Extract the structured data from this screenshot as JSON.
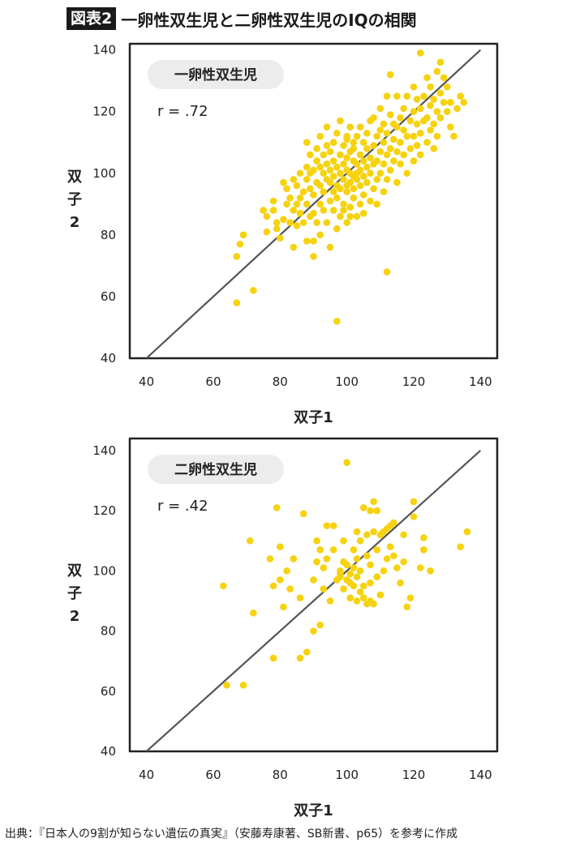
{
  "figure": {
    "tag": "図表2",
    "title": "一卵性双生児と二卵性双生児のIQの相関"
  },
  "source": "出典：『日本人の9割が知らない遺伝の真実』（安藤寿康著、SB新書、p65）を参考に作成",
  "colors": {
    "dot": "#f6d20f",
    "line": "#555555",
    "frame": "#222222",
    "badge": "#ececec"
  },
  "chart_data": [
    {
      "type": "scatter",
      "badge": "一卵性双生児",
      "annotation": "r = .72",
      "xlabel": "双子1",
      "ylabel": [
        "双",
        "子",
        "2"
      ],
      "xlim": [
        35,
        145
      ],
      "ylim": [
        40,
        142
      ],
      "xticks": [
        40,
        60,
        80,
        100,
        120,
        140
      ],
      "yticks": [
        40,
        60,
        80,
        100,
        120,
        140
      ],
      "trend_line": [
        [
          40,
          40
        ],
        [
          140,
          140
        ]
      ],
      "points": [
        [
          67,
          73
        ],
        [
          67,
          58
        ],
        [
          68,
          77
        ],
        [
          69,
          80
        ],
        [
          72,
          62
        ],
        [
          75,
          88
        ],
        [
          76,
          86
        ],
        [
          76,
          81
        ],
        [
          78,
          91
        ],
        [
          78,
          88
        ],
        [
          79,
          84
        ],
        [
          79,
          82
        ],
        [
          80,
          79
        ],
        [
          81,
          85
        ],
        [
          81,
          97
        ],
        [
          82,
          90
        ],
        [
          82,
          95
        ],
        [
          83,
          92
        ],
        [
          83,
          84
        ],
        [
          84,
          76
        ],
        [
          84,
          88
        ],
        [
          84,
          98
        ],
        [
          85,
          96
        ],
        [
          85,
          90
        ],
        [
          85,
          83
        ],
        [
          86,
          92
        ],
        [
          86,
          100
        ],
        [
          86,
          87
        ],
        [
          87,
          84
        ],
        [
          87,
          94
        ],
        [
          88,
          90
        ],
        [
          88,
          98
        ],
        [
          88,
          102
        ],
        [
          88,
          110
        ],
        [
          88,
          78
        ],
        [
          89,
          86
        ],
        [
          89,
          95
        ],
        [
          89,
          100
        ],
        [
          89,
          106
        ],
        [
          90,
          87
        ],
        [
          90,
          93
        ],
        [
          90,
          101
        ],
        [
          90,
          78
        ],
        [
          90,
          73
        ],
        [
          91,
          84
        ],
        [
          91,
          97
        ],
        [
          91,
          104
        ],
        [
          91,
          108
        ],
        [
          92,
          90
        ],
        [
          92,
          96
        ],
        [
          92,
          102
        ],
        [
          92,
          112
        ],
        [
          92,
          80
        ],
        [
          93,
          88
        ],
        [
          93,
          100
        ],
        [
          93,
          106
        ],
        [
          93,
          94
        ],
        [
          94,
          84
        ],
        [
          94,
          98
        ],
        [
          94,
          103
        ],
        [
          94,
          109
        ],
        [
          94,
          115
        ],
        [
          95,
          76
        ],
        [
          95,
          91
        ],
        [
          95,
          97
        ],
        [
          95,
          101
        ],
        [
          95,
          107
        ],
        [
          96,
          88
        ],
        [
          96,
          94
        ],
        [
          96,
          99
        ],
        [
          96,
          104
        ],
        [
          96,
          110
        ],
        [
          97,
          82
        ],
        [
          97,
          92
        ],
        [
          97,
          96
        ],
        [
          97,
          102
        ],
        [
          97,
          113
        ],
        [
          97,
          52
        ],
        [
          98,
          86
        ],
        [
          98,
          95
        ],
        [
          98,
          100
        ],
        [
          98,
          106
        ],
        [
          98,
          117
        ],
        [
          99,
          90
        ],
        [
          99,
          98
        ],
        [
          99,
          103
        ],
        [
          99,
          109
        ],
        [
          99,
          88
        ],
        [
          100,
          84
        ],
        [
          100,
          94
        ],
        [
          100,
          96
        ],
        [
          100,
          101
        ],
        [
          100,
          105
        ],
        [
          100,
          111
        ],
        [
          100,
          112
        ],
        [
          101,
          89
        ],
        [
          101,
          97
        ],
        [
          101,
          100
        ],
        [
          101,
          107
        ],
        [
          101,
          115
        ],
        [
          101,
          86
        ],
        [
          102,
          92
        ],
        [
          102,
          95
        ],
        [
          102,
          99
        ],
        [
          102,
          104
        ],
        [
          102,
          110
        ],
        [
          102,
          108
        ],
        [
          103,
          86
        ],
        [
          103,
          98
        ],
        [
          103,
          103
        ],
        [
          103,
          112
        ],
        [
          103,
          100
        ],
        [
          104,
          90
        ],
        [
          104,
          96
        ],
        [
          104,
          101
        ],
        [
          104,
          106
        ],
        [
          104,
          115
        ],
        [
          105,
          93
        ],
        [
          105,
          99
        ],
        [
          105,
          104
        ],
        [
          105,
          110
        ],
        [
          105,
          87
        ],
        [
          106,
          97
        ],
        [
          106,
          102
        ],
        [
          106,
          108
        ],
        [
          106,
          113
        ],
        [
          107,
          91
        ],
        [
          107,
          100
        ],
        [
          107,
          105
        ],
        [
          107,
          117
        ],
        [
          108,
          95
        ],
        [
          108,
          103
        ],
        [
          108,
          109
        ],
        [
          108,
          118
        ],
        [
          109,
          98
        ],
        [
          109,
          104
        ],
        [
          109,
          112
        ],
        [
          109,
          90
        ],
        [
          110,
          100
        ],
        [
          110,
          107
        ],
        [
          110,
          114
        ],
        [
          110,
          121
        ],
        [
          111,
          94
        ],
        [
          111,
          103
        ],
        [
          111,
          110
        ],
        [
          111,
          116
        ],
        [
          112,
          98
        ],
        [
          112,
          106
        ],
        [
          112,
          113
        ],
        [
          112,
          125
        ],
        [
          112,
          68
        ],
        [
          113,
          101
        ],
        [
          113,
          108
        ],
        [
          113,
          119
        ],
        [
          113,
          132
        ],
        [
          114,
          104
        ],
        [
          114,
          111
        ],
        [
          114,
          116
        ],
        [
          115,
          97
        ],
        [
          115,
          107
        ],
        [
          115,
          115
        ],
        [
          115,
          125
        ],
        [
          116,
          110
        ],
        [
          116,
          118
        ],
        [
          116,
          103
        ],
        [
          117,
          106
        ],
        [
          117,
          114
        ],
        [
          117,
          121
        ],
        [
          118,
          100
        ],
        [
          118,
          112
        ],
        [
          118,
          125
        ],
        [
          119,
          108
        ],
        [
          119,
          117
        ],
        [
          120,
          104
        ],
        [
          120,
          112
        ],
        [
          120,
          120
        ],
        [
          120,
          128
        ],
        [
          121,
          109
        ],
        [
          121,
          116
        ],
        [
          121,
          124
        ],
        [
          122,
          106
        ],
        [
          122,
          113
        ],
        [
          122,
          121
        ],
        [
          122,
          139
        ],
        [
          123,
          117
        ],
        [
          123,
          125
        ],
        [
          124,
          110
        ],
        [
          124,
          118
        ],
        [
          124,
          131
        ],
        [
          125,
          114
        ],
        [
          125,
          122
        ],
        [
          125,
          128
        ],
        [
          126,
          108
        ],
        [
          126,
          116
        ],
        [
          126,
          124
        ],
        [
          127,
          112
        ],
        [
          127,
          120
        ],
        [
          127,
          133
        ],
        [
          128,
          118
        ],
        [
          128,
          126
        ],
        [
          128,
          136
        ],
        [
          129,
          123
        ],
        [
          129,
          131
        ],
        [
          130,
          120
        ],
        [
          130,
          128
        ],
        [
          131,
          115
        ],
        [
          131,
          123
        ],
        [
          132,
          112
        ],
        [
          133,
          121
        ],
        [
          134,
          125
        ],
        [
          135,
          123
        ]
      ]
    },
    {
      "type": "scatter",
      "badge": "二卵性双生児",
      "annotation": "r = .42",
      "xlabel": "双子1",
      "ylabel": [
        "双",
        "子",
        "2"
      ],
      "xlim": [
        35,
        145
      ],
      "ylim": [
        40,
        144
      ],
      "xticks": [
        40,
        60,
        80,
        100,
        120,
        140
      ],
      "yticks": [
        40,
        60,
        80,
        100,
        120,
        140
      ],
      "trend_line": [
        [
          40,
          40
        ],
        [
          140,
          140
        ]
      ],
      "points": [
        [
          63,
          95
        ],
        [
          64,
          62
        ],
        [
          69,
          62
        ],
        [
          71,
          110
        ],
        [
          72,
          86
        ],
        [
          77,
          104
        ],
        [
          78,
          95
        ],
        [
          78,
          71
        ],
        [
          79,
          121
        ],
        [
          80,
          97
        ],
        [
          80,
          108
        ],
        [
          81,
          88
        ],
        [
          82,
          100
        ],
        [
          83,
          94
        ],
        [
          84,
          104
        ],
        [
          86,
          71
        ],
        [
          86,
          91
        ],
        [
          87,
          119
        ],
        [
          88,
          73
        ],
        [
          90,
          97
        ],
        [
          90,
          80
        ],
        [
          91,
          103
        ],
        [
          91,
          110
        ],
        [
          92,
          107
        ],
        [
          92,
          82
        ],
        [
          93,
          94
        ],
        [
          93,
          101
        ],
        [
          94,
          104
        ],
        [
          94,
          115
        ],
        [
          95,
          90
        ],
        [
          96,
          107
        ],
        [
          96,
          115
        ],
        [
          97,
          97
        ],
        [
          98,
          100
        ],
        [
          98,
          99
        ],
        [
          98,
          98
        ],
        [
          99,
          94
        ],
        [
          99,
          103
        ],
        [
          99,
          110
        ],
        [
          100,
          97
        ],
        [
          100,
          102
        ],
        [
          100,
          136
        ],
        [
          101,
          91
        ],
        [
          101,
          96
        ],
        [
          101,
          99
        ],
        [
          102,
          95
        ],
        [
          102,
          101
        ],
        [
          102,
          107
        ],
        [
          103,
          90
        ],
        [
          103,
          98
        ],
        [
          103,
          104
        ],
        [
          103,
          113
        ],
        [
          104,
          93
        ],
        [
          104,
          100
        ],
        [
          104,
          110
        ],
        [
          105,
          91
        ],
        [
          105,
          95
        ],
        [
          105,
          121
        ],
        [
          106,
          105
        ],
        [
          106,
          112
        ],
        [
          106,
          89
        ],
        [
          107,
          90
        ],
        [
          107,
          96
        ],
        [
          107,
          102
        ],
        [
          107,
          120
        ],
        [
          108,
          89
        ],
        [
          108,
          113
        ],
        [
          108,
          123
        ],
        [
          109,
          98
        ],
        [
          109,
          107
        ],
        [
          109,
          120
        ],
        [
          110,
          112
        ],
        [
          110,
          92
        ],
        [
          111,
          100
        ],
        [
          111,
          113
        ],
        [
          112,
          104
        ],
        [
          112,
          114
        ],
        [
          113,
          115
        ],
        [
          113,
          108
        ],
        [
          114,
          105
        ],
        [
          114,
          116
        ],
        [
          115,
          101
        ],
        [
          116,
          96
        ],
        [
          117,
          103
        ],
        [
          117,
          112
        ],
        [
          118,
          88
        ],
        [
          119,
          91
        ],
        [
          120,
          123
        ],
        [
          120,
          118
        ],
        [
          122,
          101
        ],
        [
          123,
          107
        ],
        [
          123,
          111
        ],
        [
          125,
          100
        ],
        [
          134,
          108
        ],
        [
          136,
          113
        ]
      ]
    }
  ]
}
